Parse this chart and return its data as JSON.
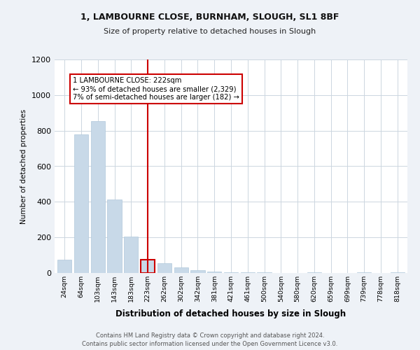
{
  "title1": "1, LAMBOURNE CLOSE, BURNHAM, SLOUGH, SL1 8BF",
  "title2": "Size of property relative to detached houses in Slough",
  "xlabel": "Distribution of detached houses by size in Slough",
  "ylabel": "Number of detached properties",
  "categories": [
    "24sqm",
    "64sqm",
    "103sqm",
    "143sqm",
    "183sqm",
    "223sqm",
    "262sqm",
    "302sqm",
    "342sqm",
    "381sqm",
    "421sqm",
    "461sqm",
    "500sqm",
    "540sqm",
    "580sqm",
    "620sqm",
    "659sqm",
    "699sqm",
    "739sqm",
    "778sqm",
    "818sqm"
  ],
  "values": [
    75,
    780,
    855,
    415,
    205,
    75,
    55,
    30,
    15,
    8,
    3,
    3,
    3,
    1,
    1,
    5,
    1,
    1,
    5,
    1,
    3
  ],
  "bar_color": "#c8d9e8",
  "bar_edge_color": "#b0c8dc",
  "highlight_index": 5,
  "highlight_color": "#cc0000",
  "ylim": [
    0,
    1200
  ],
  "yticks": [
    0,
    200,
    400,
    600,
    800,
    1000,
    1200
  ],
  "annotation_text_line1": "1 LAMBOURNE CLOSE: 222sqm",
  "annotation_text_line2": "← 93% of detached houses are smaller (2,329)",
  "annotation_text_line3": "7% of semi-detached houses are larger (182) →",
  "footer_line1": "Contains HM Land Registry data © Crown copyright and database right 2024.",
  "footer_line2": "Contains public sector information licensed under the Open Government Licence v3.0.",
  "bg_color": "#eef2f7",
  "plot_bg_color": "#ffffff",
  "grid_color": "#ccd6e0"
}
